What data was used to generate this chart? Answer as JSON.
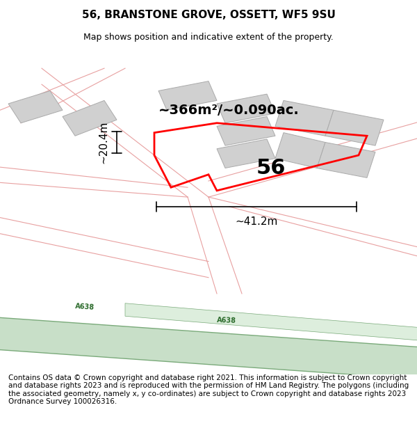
{
  "title": "56, BRANSTONE GROVE, OSSETT, WF5 9SU",
  "subtitle": "Map shows position and indicative extent of the property.",
  "footer": "Contains OS data © Crown copyright and database right 2021. This information is subject to Crown copyright and database rights 2023 and is reproduced with the permission of HM Land Registry. The polygons (including the associated geometry, namely x, y co-ordinates) are subject to Crown copyright and database rights 2023 Ordnance Survey 100026316.",
  "area_text": "~366m²/~0.090ac.",
  "width_text": "~41.2m",
  "height_text": "~20.4m",
  "plot_number": "56",
  "bg_color": "#ffffff",
  "map_bg": "#f5f5f5",
  "road_green_fill": "#c8dfc8",
  "road_green_stroke": "#7aaa7a",
  "pink_line_color": "#e8a0a0",
  "red_boundary_color": "#ff0000",
  "gray_building_fill": "#d0d0d0",
  "gray_building_stroke": "#aaaaaa",
  "dim_line_color": "#000000",
  "title_fontsize": 11,
  "subtitle_fontsize": 9,
  "footer_fontsize": 7.5,
  "annotation_fontsize": 14,
  "plot_num_fontsize": 22
}
